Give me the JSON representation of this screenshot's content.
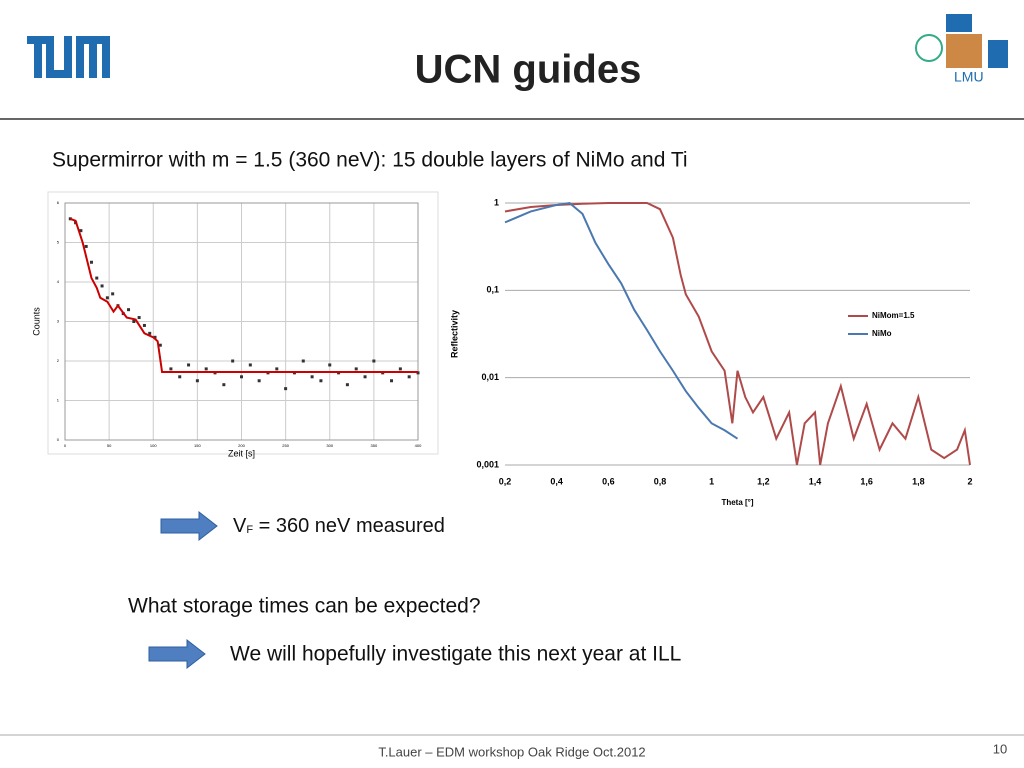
{
  "header": {
    "title": "UCN guides",
    "logo_right_text": "LMU"
  },
  "subtitle": "Supermirror with m = 1.5 (360 neV): 15 double layers of NiMo and Ti",
  "note": {
    "v": "V",
    "sub": "F",
    "rest": " = 360 neV measured"
  },
  "question": "What storage times can be expected?",
  "answer": "We will hopefully investigate this next year at ILL",
  "footer": {
    "text": "T.Lauer – EDM workshop Oak Ridge Oct.2012",
    "page": "10"
  },
  "chart_data": [
    {
      "type": "scatter",
      "xlabel": "Zeit [s]",
      "ylabel": "Counts",
      "xlim": [
        0,
        400
      ],
      "ylim": [
        0,
        6
      ],
      "xticks": [
        0,
        50,
        100,
        150,
        200,
        250,
        300,
        350,
        400
      ],
      "yticks": [
        0,
        1,
        2,
        3,
        4,
        5,
        6
      ],
      "grid": true,
      "color": "#333333",
      "x": [
        6,
        12,
        18,
        24,
        30,
        36,
        42,
        48,
        54,
        60,
        66,
        72,
        78,
        84,
        90,
        96,
        102,
        108,
        120,
        130,
        140,
        150,
        160,
        170,
        180,
        190,
        200,
        210,
        220,
        230,
        240,
        250,
        260,
        270,
        280,
        290,
        300,
        310,
        320,
        330,
        340,
        350,
        360,
        370,
        380,
        390,
        400
      ],
      "values": [
        5.6,
        5.5,
        5.3,
        4.9,
        4.5,
        4.1,
        3.9,
        3.6,
        3.7,
        3.4,
        3.2,
        3.3,
        3.0,
        3.1,
        2.9,
        2.7,
        2.6,
        2.4,
        1.8,
        1.6,
        1.9,
        1.5,
        1.8,
        1.7,
        1.4,
        2.0,
        1.6,
        1.9,
        1.5,
        1.7,
        1.8,
        1.3,
        1.7,
        2.0,
        1.6,
        1.5,
        1.9,
        1.7,
        1.4,
        1.8,
        1.6,
        2.0,
        1.7,
        1.5,
        1.8,
        1.6,
        1.7
      ],
      "fit": {
        "color": "#cc0000",
        "x": [
          6,
          12,
          20,
          30,
          36,
          40,
          48,
          55,
          60,
          70,
          80,
          90,
          100,
          105,
          110,
          400
        ],
        "values": [
          5.6,
          5.55,
          5.0,
          4.1,
          3.85,
          3.6,
          3.5,
          3.25,
          3.4,
          3.1,
          3.05,
          2.7,
          2.6,
          2.5,
          1.72,
          1.72
        ]
      }
    },
    {
      "type": "line",
      "xlabel": "Theta [°]",
      "ylabel": "Reflectivity",
      "log_y": true,
      "grid": true,
      "legend": "right",
      "xlim": [
        0.2,
        2
      ],
      "ylim": [
        0.001,
        1
      ],
      "xticks": [
        {
          "value": 0.2,
          "label": "0,2"
        },
        {
          "value": 0.4,
          "label": "0,4"
        },
        {
          "value": 0.6,
          "label": "0,6"
        },
        {
          "value": 0.8,
          "label": "0,8"
        },
        1,
        {
          "value": 1.2,
          "label": "1,2"
        },
        {
          "value": 1.4,
          "label": "1,4"
        },
        {
          "value": 1.6,
          "label": "1,6"
        },
        {
          "value": 1.8,
          "label": "1,8"
        },
        2
      ],
      "yticks": [
        {
          "value": 0.001,
          "label": "0,001"
        },
        {
          "value": 0.01,
          "label": "0,01"
        },
        {
          "value": 0.1,
          "label": "0,1"
        },
        1
      ],
      "series": [
        {
          "name": "NiMom=1.5",
          "color": "#b04a4a",
          "x": [
            0.2,
            0.3,
            0.4,
            0.5,
            0.6,
            0.7,
            0.75,
            0.8,
            0.85,
            0.88,
            0.9,
            0.95,
            1.0,
            1.05,
            1.08,
            1.1,
            1.13,
            1.16,
            1.2,
            1.25,
            1.3,
            1.33,
            1.36,
            1.4,
            1.42,
            1.45,
            1.5,
            1.55,
            1.6,
            1.65,
            1.7,
            1.75,
            1.8,
            1.85,
            1.9,
            1.95,
            1.98,
            2.0
          ],
          "values": [
            0.8,
            0.9,
            0.95,
            0.98,
            1,
            1,
            1,
            0.85,
            0.4,
            0.15,
            0.09,
            0.05,
            0.02,
            0.012,
            0.003,
            0.012,
            0.006,
            0.004,
            0.006,
            0.002,
            0.004,
            0.001,
            0.003,
            0.004,
            0.001,
            0.003,
            0.008,
            0.002,
            0.005,
            0.0015,
            0.003,
            0.002,
            0.006,
            0.0015,
            0.0012,
            0.0015,
            0.0025,
            0.001
          ]
        },
        {
          "name": "NiMo",
          "color": "#4a78b0",
          "x": [
            0.2,
            0.3,
            0.4,
            0.45,
            0.5,
            0.55,
            0.6,
            0.65,
            0.7,
            0.75,
            0.8,
            0.85,
            0.9,
            0.95,
            1.0,
            1.05,
            1.1
          ],
          "values": [
            0.6,
            0.8,
            0.95,
            1,
            0.75,
            0.35,
            0.2,
            0.12,
            0.06,
            0.035,
            0.02,
            0.012,
            0.007,
            0.0045,
            0.003,
            0.0025,
            0.002
          ]
        }
      ]
    }
  ]
}
